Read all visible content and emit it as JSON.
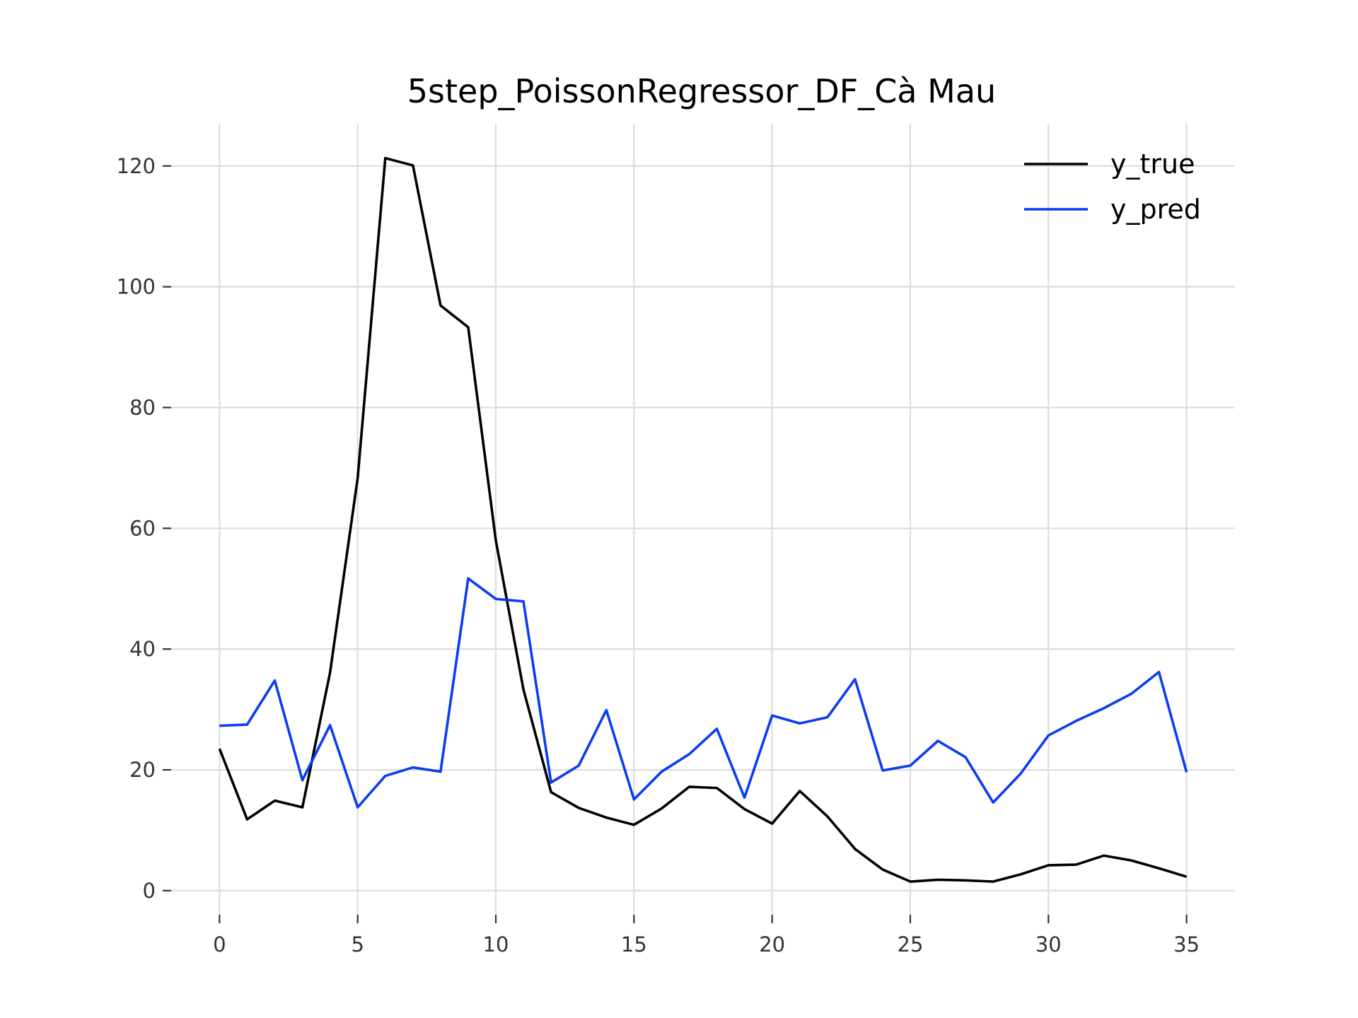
{
  "chart_data": {
    "type": "line",
    "title": "5step_PoissonRegressor_DF_Cà Mau",
    "xlabel": "",
    "ylabel": "",
    "xlim": [
      -1.75,
      36.75
    ],
    "ylim": [
      -4,
      127
    ],
    "x_ticks": [
      0,
      5,
      10,
      15,
      20,
      25,
      30,
      35
    ],
    "y_ticks": [
      0,
      20,
      40,
      60,
      80,
      100,
      120
    ],
    "grid": true,
    "legend_position": "top-right",
    "x": [
      0,
      1,
      2,
      3,
      4,
      5,
      6,
      7,
      8,
      9,
      10,
      11,
      12,
      13,
      14,
      15,
      16,
      17,
      18,
      19,
      20,
      21,
      22,
      23,
      24,
      25,
      26,
      27,
      28,
      29,
      30,
      31,
      32,
      33,
      34,
      35
    ],
    "series": [
      {
        "name": "y_true",
        "color": "#000000",
        "values": [
          23.5,
          11.8,
          14.9,
          13.8,
          36.1,
          68.3,
          121.3,
          120.1,
          96.9,
          93.3,
          58.0,
          33.3,
          16.3,
          13.7,
          12.1,
          10.9,
          13.6,
          17.2,
          17.0,
          13.5,
          11.1,
          16.5,
          12.3,
          6.9,
          3.5,
          1.5,
          1.8,
          1.7,
          1.5,
          2.7,
          4.2,
          4.3,
          5.8,
          5.0,
          3.7,
          2.3
        ]
      },
      {
        "name": "y_pred",
        "color": "#0a3cf5",
        "values": [
          27.3,
          27.5,
          34.8,
          18.3,
          27.4,
          13.8,
          19.0,
          20.4,
          19.7,
          51.7,
          48.3,
          47.9,
          17.9,
          20.7,
          29.9,
          15.1,
          19.7,
          22.6,
          26.8,
          15.4,
          29.0,
          27.7,
          28.7,
          35.0,
          19.9,
          20.7,
          24.8,
          22.1,
          14.6,
          19.4,
          25.7,
          28.1,
          30.2,
          32.6,
          36.2,
          19.6
        ]
      }
    ]
  }
}
